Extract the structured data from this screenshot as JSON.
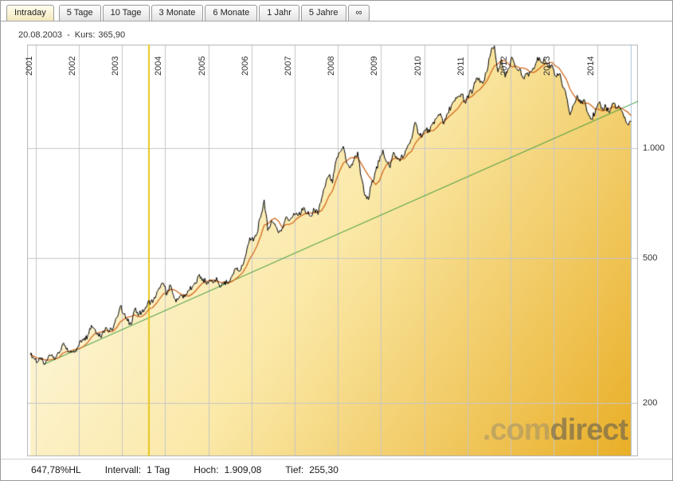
{
  "tabs": [
    {
      "id": "intraday",
      "label": "Intraday",
      "active": true
    },
    {
      "id": "5-tage",
      "label": "5 Tage",
      "active": false
    },
    {
      "id": "10-tage",
      "label": "10 Tage",
      "active": false
    },
    {
      "id": "3-monate",
      "label": "3 Monate",
      "active": false
    },
    {
      "id": "6-monate",
      "label": "6 Monate",
      "active": false
    },
    {
      "id": "1-jahr",
      "label": "1 Jahr",
      "active": false
    },
    {
      "id": "5-jahre",
      "label": "5 Jahre",
      "active": false
    },
    {
      "id": "max",
      "label": "∞",
      "active": false
    }
  ],
  "readout": {
    "date": "20.08.2003",
    "separator": "-",
    "kurs_label": "Kurs:",
    "kurs_value": "365,90"
  },
  "statusbar": {
    "percent_hl": "647,78%HL",
    "interval_label": "Intervall:",
    "interval_value": "1 Tag",
    "hoch_label": "Hoch:",
    "hoch_value": "1.909,08",
    "tief_label": "Tief:",
    "tief_value": "255,30"
  },
  "watermark": {
    "prefix": ".com",
    "suffix": "direct"
  },
  "chart_data": {
    "type": "area",
    "scale": "log",
    "x_domain": [
      2000.8,
      2014.95
    ],
    "y_domain": [
      143,
      1924
    ],
    "y_ticks": [
      {
        "label": "1.000",
        "value": 1000
      },
      {
        "label": "500",
        "value": 500
      },
      {
        "label": "200",
        "value": 200
      }
    ],
    "year_gridlines": [
      2001,
      2002,
      2003,
      2004,
      2005,
      2006,
      2007,
      2008,
      2009,
      2010,
      2011,
      2012,
      2013,
      2014
    ],
    "grid_color": "#c6c6c6",
    "border_color": "#b4b4b4",
    "cursor": {
      "x": 2003.63,
      "color": "#e7c61c",
      "width": 2
    },
    "current_marker_color": "#a9c0d8",
    "fill": {
      "from": "#fffef6",
      "mid": "#fbe9a8",
      "to": "#e9ae25"
    },
    "series": {
      "color": "#000000",
      "x_start": 2000.875,
      "x_step": 0.0833333,
      "values": [
        272,
        266,
        259,
        263,
        255.3,
        268,
        272,
        266,
        274,
        291,
        281,
        276,
        278,
        283,
        297,
        302,
        308,
        327,
        319,
        305,
        311,
        323,
        314,
        320,
        344,
        369,
        351,
        336,
        328,
        362,
        347,
        355,
        366,
        383,
        377,
        396,
        413,
        426,
        397,
        421,
        388,
        384,
        395,
        391,
        407,
        416,
        426,
        451,
        438,
        423,
        436,
        428,
        435,
        418,
        431,
        425,
        445,
        469,
        461,
        477,
        514,
        569,
        556,
        583,
        645,
        722,
        595,
        633,
        620,
        586,
        604,
        647,
        633,
        652,
        665,
        656,
        689,
        660,
        651,
        678,
        658,
        731,
        789,
        843,
        802,
        926,
        974,
        1012,
        908,
        886,
        931,
        977,
        832,
        741,
        723,
        815,
        866,
        920,
        990,
        917,
        884,
        976,
        933,
        940,
        956,
        1019,
        1061,
        1179,
        1095,
        1084,
        1119,
        1106,
        1180,
        1215,
        1245,
        1168,
        1247,
        1308,
        1347,
        1384,
        1406,
        1326,
        1412,
        1440,
        1557,
        1514,
        1530,
        1629,
        1827,
        1909.08,
        1619,
        1747,
        1565,
        1656,
        1771,
        1661,
        1650,
        1557,
        1597,
        1616,
        1649,
        1777,
        1718,
        1752,
        1663,
        1694,
        1579,
        1599,
        1468,
        1386,
        1234,
        1314,
        1397,
        1328,
        1360,
        1252,
        1204,
        1251,
        1330,
        1291,
        1300,
        1252,
        1327,
        1293,
        1288,
        1216,
        1164,
        1182
      ]
    },
    "sma": {
      "color": "#d2691e",
      "window": 5
    },
    "trendline": {
      "color": "#3a9a3a",
      "x1": 2001.2,
      "y1": 256,
      "x2": 2014.95,
      "y2": 1345
    },
    "high": 1909.08,
    "low": 255.3
  }
}
